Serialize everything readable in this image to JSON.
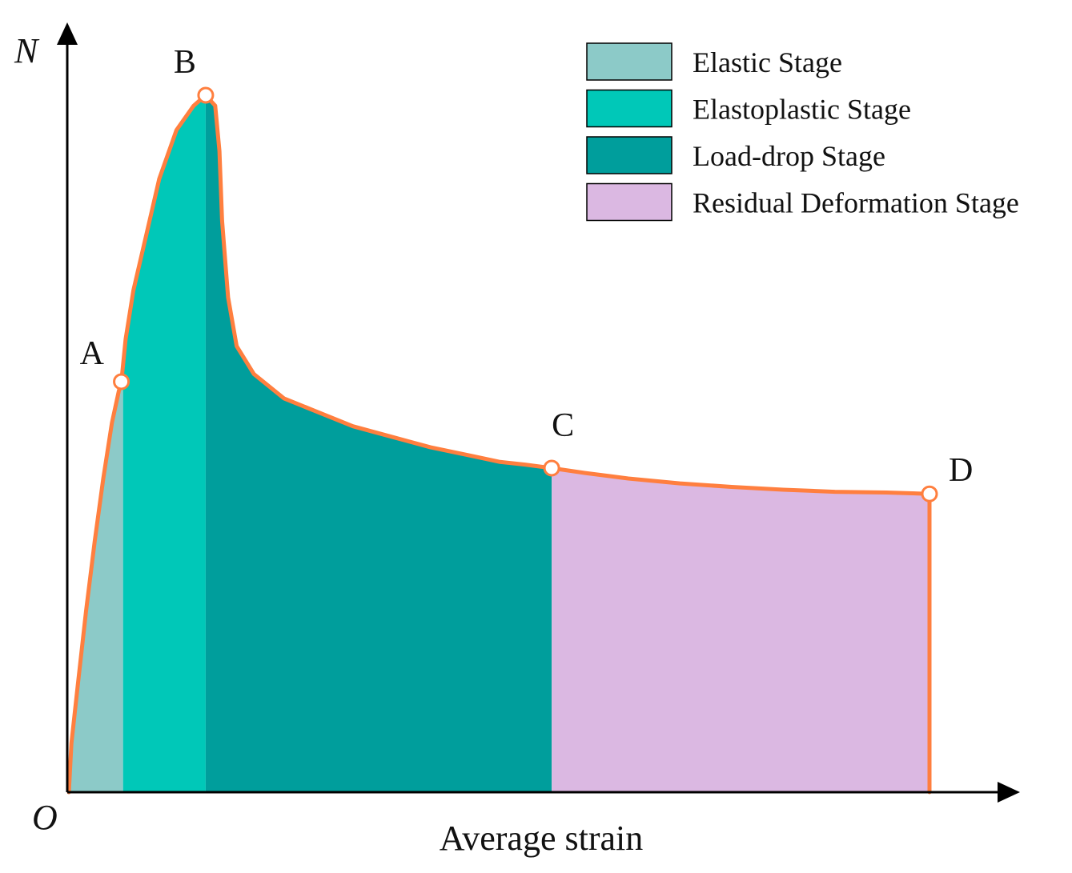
{
  "chart_data": {
    "type": "area",
    "title": "",
    "xlabel": "Average strain",
    "ylabel": "N",
    "origin_label": "O",
    "grid": false,
    "legend_position": "top-right",
    "colors": {
      "curve": "#FF7F3F",
      "axis": "#000000",
      "point_fill": "#ffffff"
    },
    "stages": [
      {
        "name": "Elastic Stage",
        "color": "#8CCAC8",
        "x_start": 0,
        "x_end": 0.063
      },
      {
        "name": "Elastoplastic Stage",
        "color": "#00C8B8",
        "x_start": 0.063,
        "x_end": 0.159
      },
      {
        "name": "Load-drop Stage",
        "color": "#009E9C",
        "x_start": 0.159,
        "x_end": 0.561
      },
      {
        "name": "Residual Deformation Stage",
        "color": "#DBB8E2",
        "x_start": 0.561,
        "x_end": 1.0
      }
    ],
    "key_points": [
      {
        "label": "A",
        "x": 0.061,
        "y": 0.589
      },
      {
        "label": "B",
        "x": 0.159,
        "y": 1.0
      },
      {
        "label": "C",
        "x": 0.561,
        "y": 0.465
      },
      {
        "label": "D",
        "x": 1.0,
        "y": 0.428
      }
    ],
    "curve": {
      "x": [
        0,
        0.003,
        0.01,
        0.02,
        0.03,
        0.04,
        0.05,
        0.058,
        0.061,
        0.066,
        0.075,
        0.09,
        0.105,
        0.125,
        0.145,
        0.159,
        0.17,
        0.175,
        0.178,
        0.185,
        0.195,
        0.215,
        0.25,
        0.29,
        0.33,
        0.375,
        0.42,
        0.47,
        0.5,
        0.53,
        0.561,
        0.6,
        0.65,
        0.71,
        0.77,
        0.83,
        0.89,
        0.95,
        1.0
      ],
      "y": [
        0,
        0.07,
        0.15,
        0.26,
        0.36,
        0.45,
        0.53,
        0.575,
        0.589,
        0.65,
        0.72,
        0.8,
        0.88,
        0.95,
        0.985,
        1.0,
        0.985,
        0.92,
        0.82,
        0.71,
        0.64,
        0.6,
        0.565,
        0.545,
        0.525,
        0.51,
        0.495,
        0.482,
        0.474,
        0.47,
        0.465,
        0.458,
        0.45,
        0.443,
        0.438,
        0.434,
        0.431,
        0.43,
        0.428
      ]
    },
    "xlim": [
      0,
      1.0
    ],
    "ylim": [
      0,
      1.0
    ]
  }
}
